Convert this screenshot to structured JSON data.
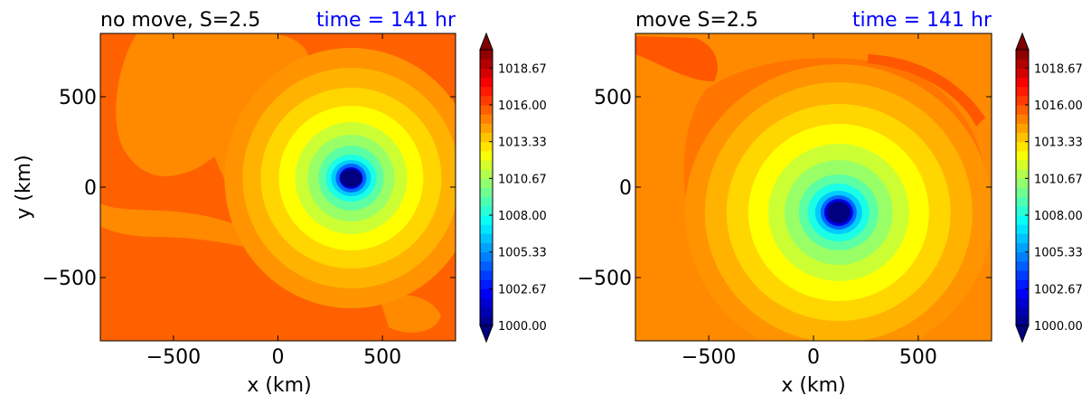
{
  "chart_data": [
    {
      "type": "heatmap",
      "title": "no move, S=2.5",
      "time_label": "time = 141 hr",
      "xlabel": "x (km)",
      "ylabel": "y (km)",
      "xlim": [
        -850,
        850
      ],
      "ylim": [
        -850,
        850
      ],
      "xticks": [
        -500,
        0,
        500
      ],
      "yticks": [
        -500,
        0,
        500
      ],
      "xtick_labels": [
        "−500",
        "0",
        "500"
      ],
      "ytick_labels": [
        "−500",
        "0",
        "500"
      ],
      "ytick_labels_shown": true,
      "vortex_center": [
        350,
        50
      ],
      "background_value": 1015.6,
      "colorbar": {
        "vmin": 1000.0,
        "vmax": 1020.0,
        "tick_values": [
          1000.0,
          1002.67,
          1005.33,
          1008.0,
          1010.67,
          1013.33,
          1016.0,
          1018.67
        ],
        "tick_labels": [
          "1000.00",
          "1002.67",
          "1005.33",
          "1008.00",
          "1010.67",
          "1013.33",
          "1016.00",
          "1018.67"
        ],
        "extend": "both"
      }
    },
    {
      "type": "heatmap",
      "title": "move S=2.5",
      "time_label": "time = 141 hr",
      "xlabel": "x (km)",
      "ylabel": "",
      "xlim": [
        -850,
        850
      ],
      "ylim": [
        -850,
        850
      ],
      "xticks": [
        -500,
        0,
        500
      ],
      "yticks": [
        -500,
        0,
        500
      ],
      "xtick_labels": [
        "−500",
        "0",
        "500"
      ],
      "ytick_labels": [
        "−500",
        "0",
        "500"
      ],
      "ytick_labels_shown": true,
      "vortex_center": [
        120,
        -140
      ],
      "background_value": 1015.4,
      "colorbar": {
        "vmin": 1000.0,
        "vmax": 1020.0,
        "tick_values": [
          1000.0,
          1002.67,
          1005.33,
          1008.0,
          1010.67,
          1013.33,
          1016.0,
          1018.67
        ],
        "tick_labels": [
          "1000.00",
          "1002.67",
          "1005.33",
          "1008.00",
          "1010.67",
          "1013.33",
          "1016.00",
          "1018.67"
        ],
        "extend": "both"
      }
    }
  ],
  "colors": {
    "time_label": "#0000ff",
    "background_field": "#ff9c00",
    "band_field": "#ffb400",
    "colormap": "jet"
  }
}
